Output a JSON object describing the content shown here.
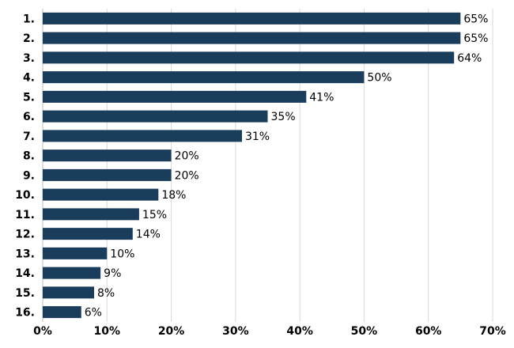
{
  "chart_data": {
    "type": "bar",
    "orientation": "horizontal",
    "categories": [
      "1.",
      "2.",
      "3.",
      "4.",
      "5.",
      "6.",
      "7.",
      "8.",
      "9.",
      "10.",
      "11.",
      "12.",
      "13.",
      "14.",
      "15.",
      "16."
    ],
    "values": [
      65,
      65,
      64,
      50,
      41,
      35,
      31,
      20,
      20,
      18,
      15,
      14,
      10,
      9,
      8,
      6
    ],
    "value_labels": [
      "65%",
      "65%",
      "64%",
      "50%",
      "41%",
      "35%",
      "31%",
      "20%",
      "20%",
      "18%",
      "15%",
      "14%",
      "10%",
      "9%",
      "8%",
      "6%"
    ],
    "xlim": [
      0,
      70
    ],
    "xticks": [
      0,
      10,
      20,
      30,
      40,
      50,
      60,
      70
    ],
    "xtick_labels": [
      "0%",
      "10%",
      "20%",
      "30%",
      "40%",
      "50%",
      "60%",
      "70%"
    ],
    "grid": "vertical",
    "bar_color": "#1b3d5c",
    "title": "",
    "xlabel": "",
    "ylabel": ""
  }
}
